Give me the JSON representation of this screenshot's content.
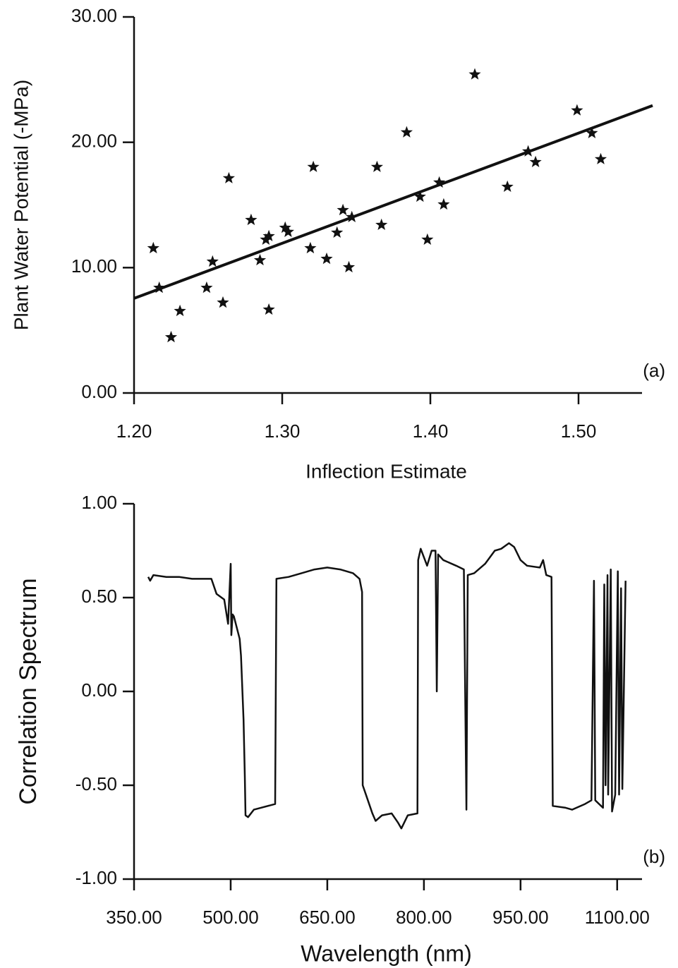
{
  "chart_data": [
    {
      "type": "scatter",
      "annotation": "(a)",
      "x_label": "Inflection Estimate",
      "y_label": "Plant Water Potential (-MPa)",
      "x": [
        1.213,
        1.217,
        1.225,
        1.231,
        1.249,
        1.253,
        1.26,
        1.264,
        1.279,
        1.285,
        1.289,
        1.291,
        1.291,
        1.302,
        1.304,
        1.319,
        1.321,
        1.33,
        1.337,
        1.341,
        1.345,
        1.347,
        1.364,
        1.367,
        1.384,
        1.393,
        1.398,
        1.406,
        1.409,
        1.43,
        1.452,
        1.466,
        1.471,
        1.499,
        1.509,
        1.515
      ],
      "values": [
        11.55,
        8.39,
        4.45,
        6.54,
        8.39,
        10.48,
        7.21,
        17.13,
        13.8,
        10.59,
        12.23,
        12.51,
        6.65,
        13.18,
        12.85,
        11.55,
        18.03,
        10.7,
        12.79,
        14.59,
        10.03,
        14.03,
        18.03,
        13.41,
        20.79,
        15.66,
        12.23,
        16.79,
        15.04,
        25.41,
        16.45,
        19.27,
        18.42,
        22.54,
        20.73,
        18.65
      ],
      "fit": {
        "x": [
          1.2,
          1.55
        ],
        "values": [
          7.55,
          22.93
        ]
      },
      "color": "#111111",
      "xlim": [
        1.2,
        1.55
      ],
      "ylim": [
        0,
        30
      ],
      "xticks": [
        {
          "value": 1.2,
          "label": "1.20"
        },
        {
          "value": 1.3,
          "label": "1.30"
        },
        {
          "value": 1.4,
          "label": "1.40"
        },
        {
          "value": 1.5,
          "label": "1.50"
        }
      ],
      "yticks": [
        {
          "value": 0,
          "label": "0.00"
        },
        {
          "value": 10,
          "label": "10.00"
        },
        {
          "value": 20,
          "label": "20.00"
        },
        {
          "value": 30,
          "label": "30.00"
        }
      ]
    },
    {
      "type": "line",
      "annotation": "(b)",
      "x_label": "Wavelength (nm)",
      "y_label": "Correlation Spectrum",
      "x": [
        372,
        375,
        380,
        400,
        420,
        440,
        460,
        470,
        478,
        490,
        496,
        500,
        501,
        503,
        505,
        514,
        516,
        520,
        522,
        523,
        527,
        536,
        569,
        571,
        590,
        610,
        630,
        650,
        670,
        690,
        700,
        704,
        705,
        710,
        720,
        725,
        735,
        750,
        760,
        765,
        775,
        790,
        791,
        795,
        805,
        812,
        818,
        820,
        822,
        830,
        850,
        862,
        866,
        868,
        878,
        895,
        910,
        920,
        932,
        940,
        950,
        960,
        980,
        985,
        990,
        998,
        1000,
        1020,
        1030,
        1050,
        1060,
        1064,
        1066,
        1072,
        1078,
        1080,
        1082,
        1085,
        1086,
        1090,
        1092,
        1097,
        1101,
        1103,
        1106,
        1108,
        1113
      ],
      "values": [
        0.61,
        0.59,
        0.62,
        0.61,
        0.61,
        0.6,
        0.6,
        0.6,
        0.52,
        0.49,
        0.36,
        0.68,
        0.3,
        0.41,
        0.4,
        0.28,
        0.19,
        -0.15,
        -0.45,
        -0.66,
        -0.67,
        -0.63,
        -0.6,
        0.6,
        0.61,
        0.63,
        0.65,
        0.66,
        0.65,
        0.63,
        0.6,
        0.53,
        -0.5,
        -0.55,
        -0.65,
        -0.69,
        -0.66,
        -0.65,
        -0.7,
        -0.73,
        -0.66,
        -0.65,
        0.7,
        0.76,
        0.67,
        0.75,
        0.75,
        0,
        0.73,
        0.7,
        0.67,
        0.65,
        -0.63,
        0.62,
        0.63,
        0.68,
        0.75,
        0.76,
        0.79,
        0.77,
        0.7,
        0.67,
        0.66,
        0.7,
        0.62,
        0.61,
        -0.61,
        -0.62,
        -0.63,
        -0.6,
        -0.58,
        0.59,
        -0.58,
        -0.6,
        -0.62,
        0.57,
        -0.5,
        0.62,
        -0.55,
        0.65,
        -0.64,
        -0.55,
        0.64,
        -0.55,
        0.55,
        -0.52,
        0.59
      ],
      "color": "#111111",
      "xlim": [
        350,
        1155
      ],
      "ylim": [
        -1,
        1
      ],
      "xticks": [
        {
          "value": 350,
          "label": "350.00"
        },
        {
          "value": 500,
          "label": "500.00"
        },
        {
          "value": 650,
          "label": "650.00"
        },
        {
          "value": 800,
          "label": "800.00"
        },
        {
          "value": 950,
          "label": "950.00"
        },
        {
          "value": 1100,
          "label": "1100.00"
        }
      ],
      "yticks": [
        {
          "value": -1,
          "label": "-1.00"
        },
        {
          "value": -0.5,
          "label": "-0.50"
        },
        {
          "value": 0,
          "label": "0.00"
        },
        {
          "value": 0.5,
          "label": "0.50"
        },
        {
          "value": 1,
          "label": "1.00"
        }
      ]
    }
  ]
}
